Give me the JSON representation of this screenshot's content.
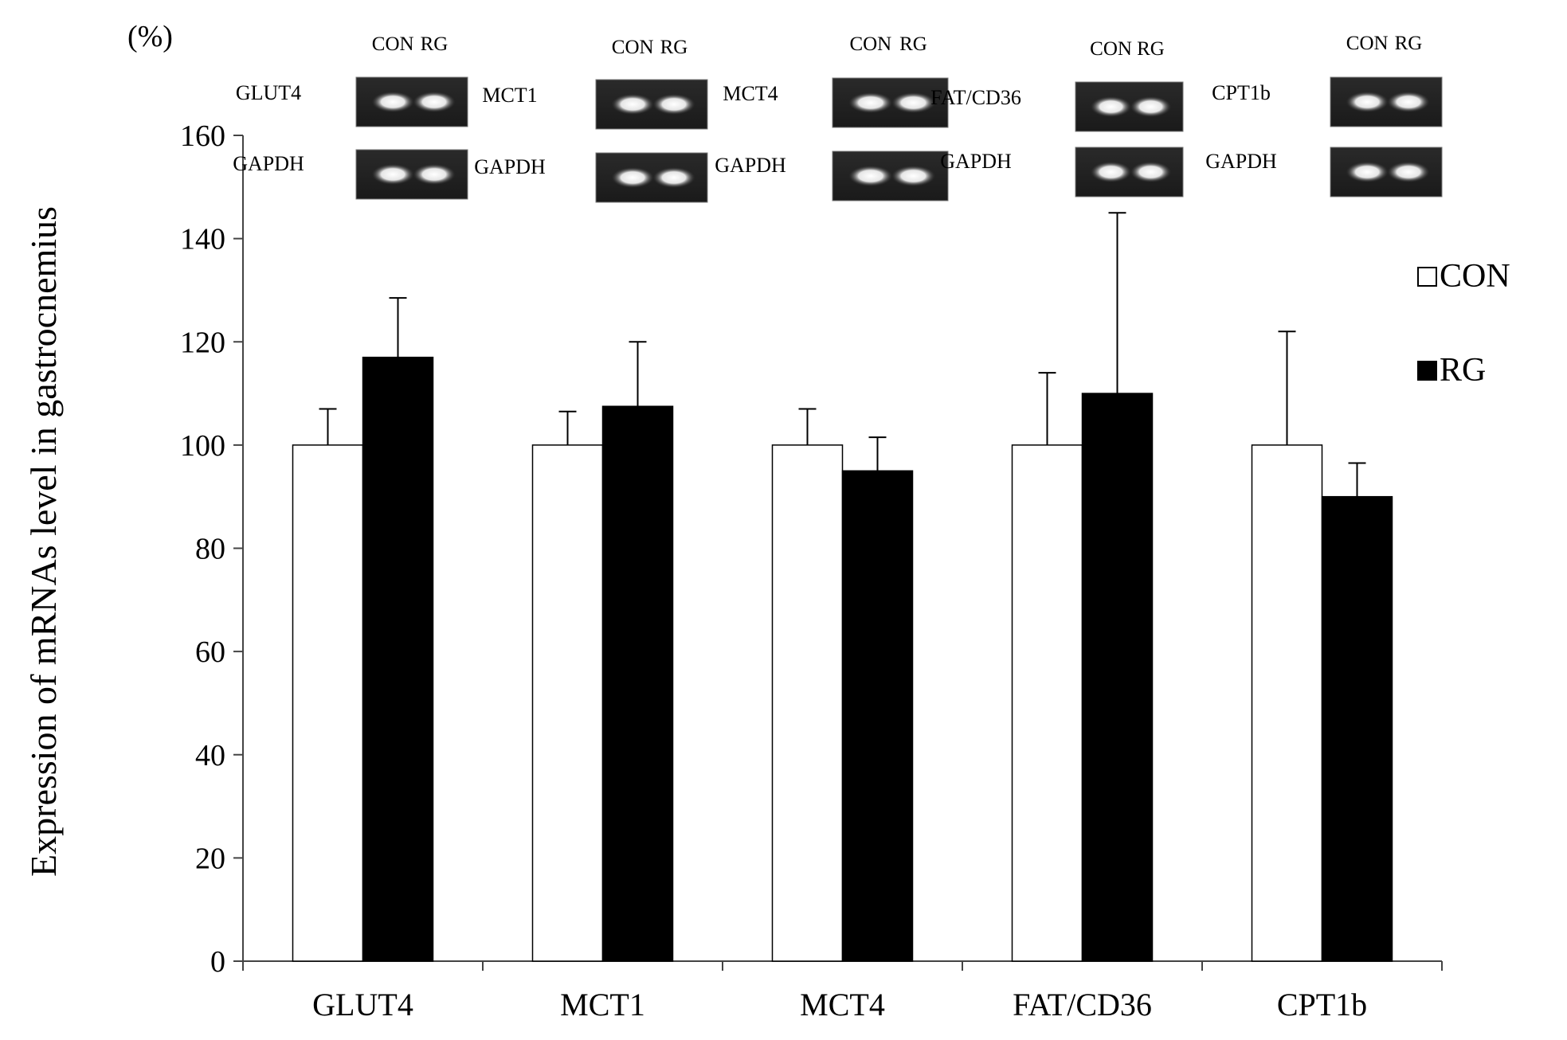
{
  "chart_data": {
    "type": "bar",
    "ylabel": "Expression of mRNAs  level in gastrocnemius",
    "yunit": "(%)",
    "ylim": [
      0,
      160
    ],
    "yticks": [
      0,
      20,
      40,
      60,
      80,
      100,
      120,
      140,
      160
    ],
    "categories": [
      "GLUT4",
      "MCT1",
      "MCT4",
      "FAT/CD36",
      "CPT1b"
    ],
    "series": [
      {
        "name": "CON",
        "color": "#ffffff",
        "values": [
          100,
          100,
          100,
          100,
          100
        ],
        "errors": [
          7,
          6.5,
          7,
          14,
          22
        ]
      },
      {
        "name": "RG",
        "color": "#000000",
        "values": [
          117,
          107.5,
          95,
          110,
          90
        ],
        "errors": [
          11.5,
          12.5,
          6.5,
          35,
          6.5
        ]
      }
    ],
    "legend": "right",
    "grid": false
  },
  "gels": [
    {
      "target": "GLUT4",
      "reference": "GAPDH",
      "lanes": [
        "CON",
        "RG"
      ]
    },
    {
      "target": "MCT1",
      "reference": "GAPDH",
      "lanes": [
        "CON",
        "RG"
      ]
    },
    {
      "target": "MCT4",
      "reference": "GAPDH",
      "lanes": [
        "CON",
        "RG"
      ]
    },
    {
      "target": "FAT/CD36",
      "reference": "GAPDH",
      "lanes": [
        "CON",
        "RG"
      ]
    },
    {
      "target": "CPT1b",
      "reference": "GAPDH",
      "lanes": [
        "CON",
        "RG"
      ]
    }
  ]
}
